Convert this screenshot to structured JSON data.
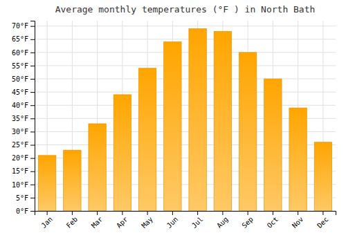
{
  "chart_data": {
    "type": "bar",
    "title": "Average monthly temperatures (°F ) in North Bath",
    "categories": [
      "Jan",
      "Feb",
      "Mar",
      "Apr",
      "May",
      "Jun",
      "Jul",
      "Aug",
      "Sep",
      "Oct",
      "Nov",
      "Dec"
    ],
    "values": [
      21,
      23,
      33,
      44,
      54,
      64,
      69,
      68,
      60,
      50,
      39,
      26
    ],
    "color": "#FFA500",
    "ylim": [
      0,
      72
    ],
    "yticks": [
      {
        "value": 0,
        "label": "0°F"
      },
      {
        "value": 5,
        "label": "5°F"
      },
      {
        "value": 10,
        "label": "10°F"
      },
      {
        "value": 15,
        "label": "15°F"
      },
      {
        "value": 20,
        "label": "20°F"
      },
      {
        "value": 25,
        "label": "25°F"
      },
      {
        "value": 30,
        "label": "30°F"
      },
      {
        "value": 35,
        "label": "35°F"
      },
      {
        "value": 40,
        "label": "40°F"
      },
      {
        "value": 45,
        "label": "45°F"
      },
      {
        "value": 50,
        "label": "50°F"
      },
      {
        "value": 55,
        "label": "55°F"
      },
      {
        "value": 60,
        "label": "60°F"
      },
      {
        "value": 65,
        "label": "65°F"
      },
      {
        "value": 70,
        "label": "70°F"
      }
    ],
    "grid": true
  }
}
